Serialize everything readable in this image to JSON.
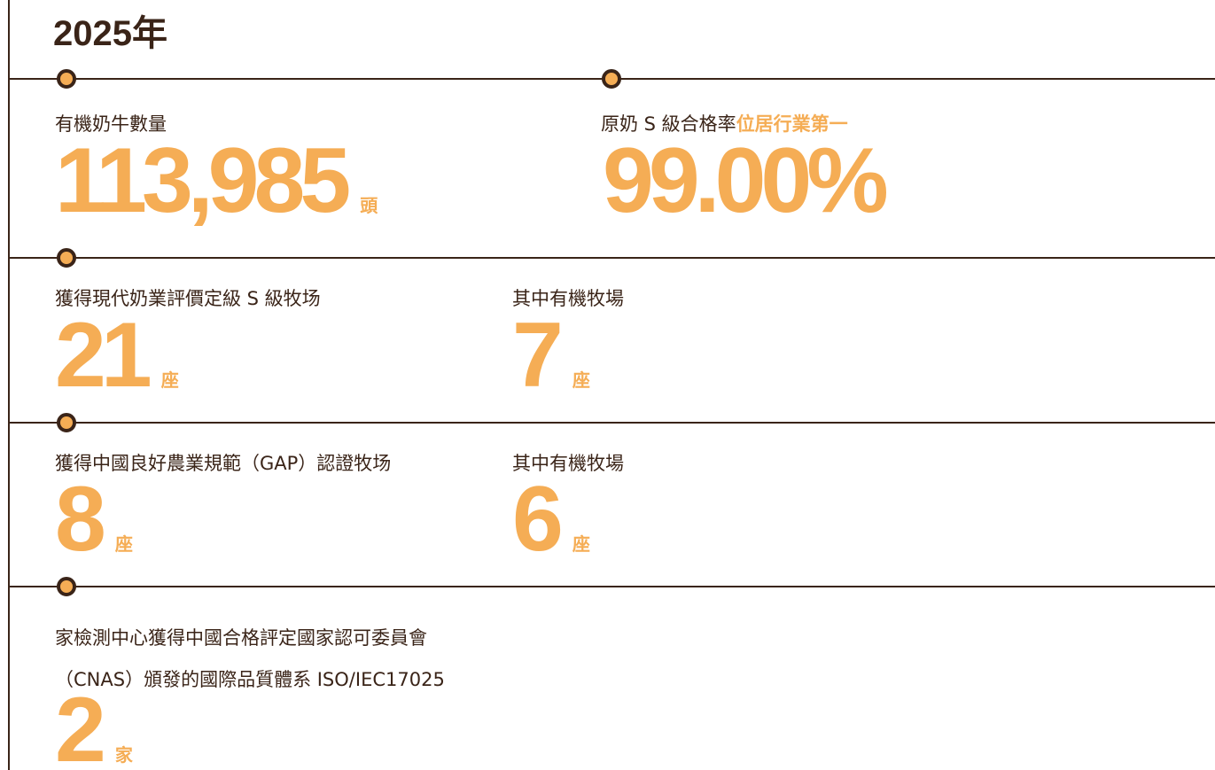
{
  "title": "2025年",
  "rows": [
    {
      "stats": [
        {
          "label": "有機奶牛數量",
          "value": "113,985",
          "unit": "頭"
        },
        {
          "label": "原奶 S 級合格率",
          "highlight": "位居行業第一",
          "value": "99.00%"
        }
      ]
    },
    {
      "stats": [
        {
          "label": "獲得現代奶業評價定級 S 級牧场",
          "value": "21",
          "unit": "座"
        },
        {
          "label": "其中有機牧場",
          "value": "7",
          "unit": "座"
        }
      ]
    },
    {
      "stats": [
        {
          "label": "獲得中國良好農業規範（GAP）認證牧场",
          "value": "8",
          "unit": "座"
        },
        {
          "label": "其中有機牧場",
          "value": "6",
          "unit": "座"
        }
      ]
    },
    {
      "stats": [
        {
          "label_lines": [
            "家檢測中心獲得中國合格評定國家認可委員會",
            "（CNAS）頒發的國際品質體系 ISO/IEC17025"
          ],
          "value": "2",
          "unit": "家"
        }
      ]
    }
  ]
}
